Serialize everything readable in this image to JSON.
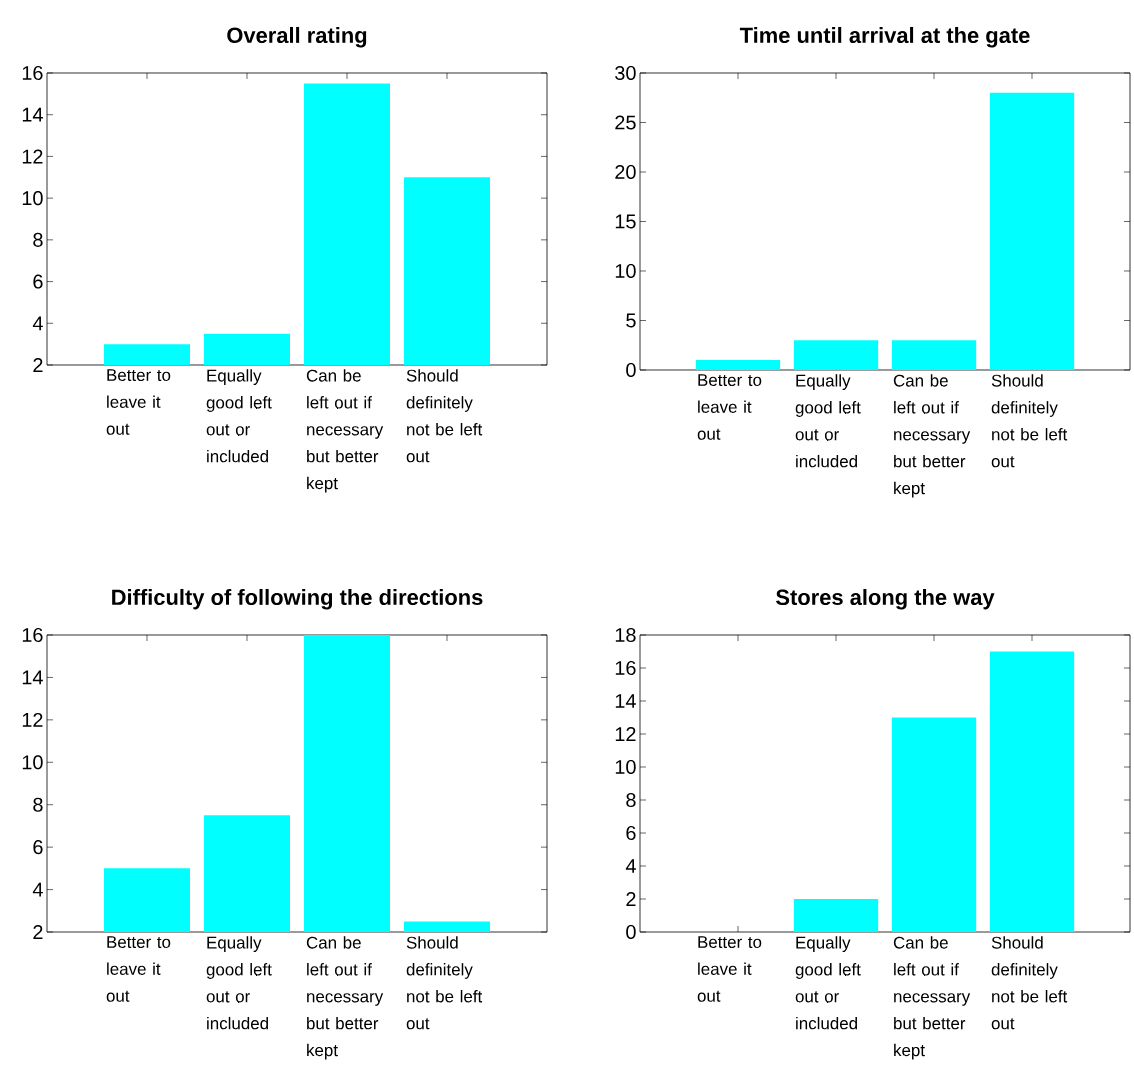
{
  "chart_data": [
    {
      "type": "bar",
      "title": "Overall rating",
      "categories": [
        "Better to leave it out",
        "Equally good left out or included",
        "Can be left out if necessary but better kept",
        "Should definitely not be left out"
      ],
      "values": [
        3,
        3.5,
        15.5,
        11
      ],
      "color": "#00ffff",
      "ylim": [
        2,
        16
      ],
      "yticks": [
        2,
        4,
        6,
        8,
        10,
        12,
        14,
        16
      ],
      "grid": false
    },
    {
      "type": "bar",
      "title": "Time until arrival at the gate",
      "categories": [
        "Better to leave it out",
        "Equally good left out or included",
        "Can be left out if necessary but better kept",
        "Should definitely not be left out"
      ],
      "values": [
        1,
        3,
        3,
        28
      ],
      "color": "#00ffff",
      "ylim": [
        0,
        30
      ],
      "yticks": [
        0,
        5,
        10,
        15,
        20,
        25,
        30
      ],
      "grid": false
    },
    {
      "type": "bar",
      "title": "Difficulty of following the directions",
      "categories": [
        "Better to leave it out",
        "Equally good left out or included",
        "Can be left out if necessary but better kept",
        "Should definitely not be left out"
      ],
      "values": [
        5,
        7.5,
        16,
        2.5
      ],
      "color": "#00ffff",
      "ylim": [
        2,
        16
      ],
      "yticks": [
        2,
        4,
        6,
        8,
        10,
        12,
        14,
        16
      ],
      "grid": false
    },
    {
      "type": "bar",
      "title": "Stores along the way",
      "categories": [
        "Better to leave it out",
        "Equally good left out or included",
        "Can be left out if necessary but better kept",
        "Should definitely not be left out"
      ],
      "values": [
        0,
        2,
        13,
        17
      ],
      "color": "#00ffff",
      "ylim": [
        0,
        18
      ],
      "yticks": [
        0,
        2,
        4,
        6,
        8,
        10,
        12,
        14,
        16,
        18
      ],
      "grid": false
    }
  ]
}
